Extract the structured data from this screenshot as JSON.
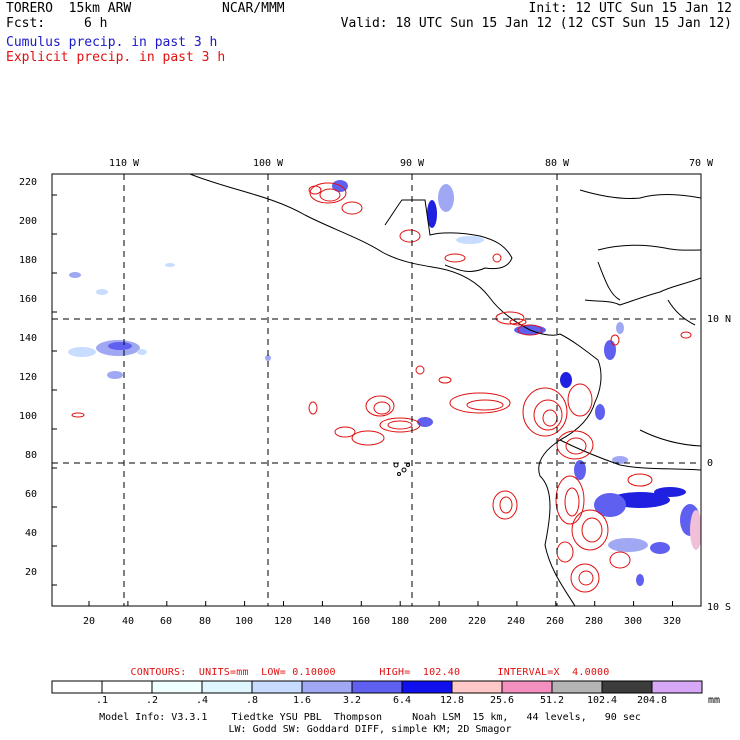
{
  "header": {
    "model_title": "TORERO  15km ARW",
    "center": "NCAR/MMM",
    "init": "Init: 12 UTC Sun 15 Jan 12",
    "fcst_label": "Fcst:",
    "fcst_value": "6 h",
    "valid": "Valid: 18 UTC Sun 15 Jan 12 (12 CST Sun 15 Jan 12)",
    "cumulus_label": "Cumulus precip. in past 3 h",
    "explicit_label": "Explicit precip. in past 3 h"
  },
  "map": {
    "top_longitude_labels": [
      "110 W",
      "100 W",
      "90 W",
      "80 W",
      "70 W"
    ],
    "right_latitude_labels": [
      "10 N",
      "0",
      "10 S"
    ],
    "left_ticks": [
      "20",
      "40",
      "60",
      "80",
      "100",
      "120",
      "140",
      "160",
      "180",
      "200",
      "220"
    ],
    "bottom_ticks": [
      "20",
      "40",
      "60",
      "80",
      "100",
      "120",
      "140",
      "160",
      "180",
      "200",
      "220",
      "240",
      "260",
      "280",
      "300",
      "320"
    ],
    "contour_color": "#e01010",
    "cumulus_color": "#3030e0"
  },
  "contours_line": "CONTOURS:  UNITS=mm  LOW= 0.10000       HIGH=  102.40      INTERVAL=X  4.0000",
  "colorbar": {
    "labels": [
      ".1",
      ".2",
      ".4",
      ".8",
      "1.6",
      "3.2",
      "6.4",
      "12.8",
      "25.6",
      "51.2",
      "102.4",
      "204.8"
    ],
    "unit": "mm",
    "colors": [
      "#ffffff",
      "#ffffff",
      "#f0ffff",
      "#e0f6ff",
      "#c8dcff",
      "#a0a8f4",
      "#6060f0",
      "#1010ee",
      "#ffc8c8",
      "#f490c0",
      "#b4b4b4",
      "#3c3c3c",
      "#d8a8f8"
    ]
  },
  "model_info": {
    "line1": "Model Info: V3.3.1    Tiedtke YSU PBL  Thompson     Noah LSM  15 km,   44 levels,   90 sec",
    "line2": "LW: Godd SW: Goddard DIFF, simple KM; 2D Smagor"
  }
}
